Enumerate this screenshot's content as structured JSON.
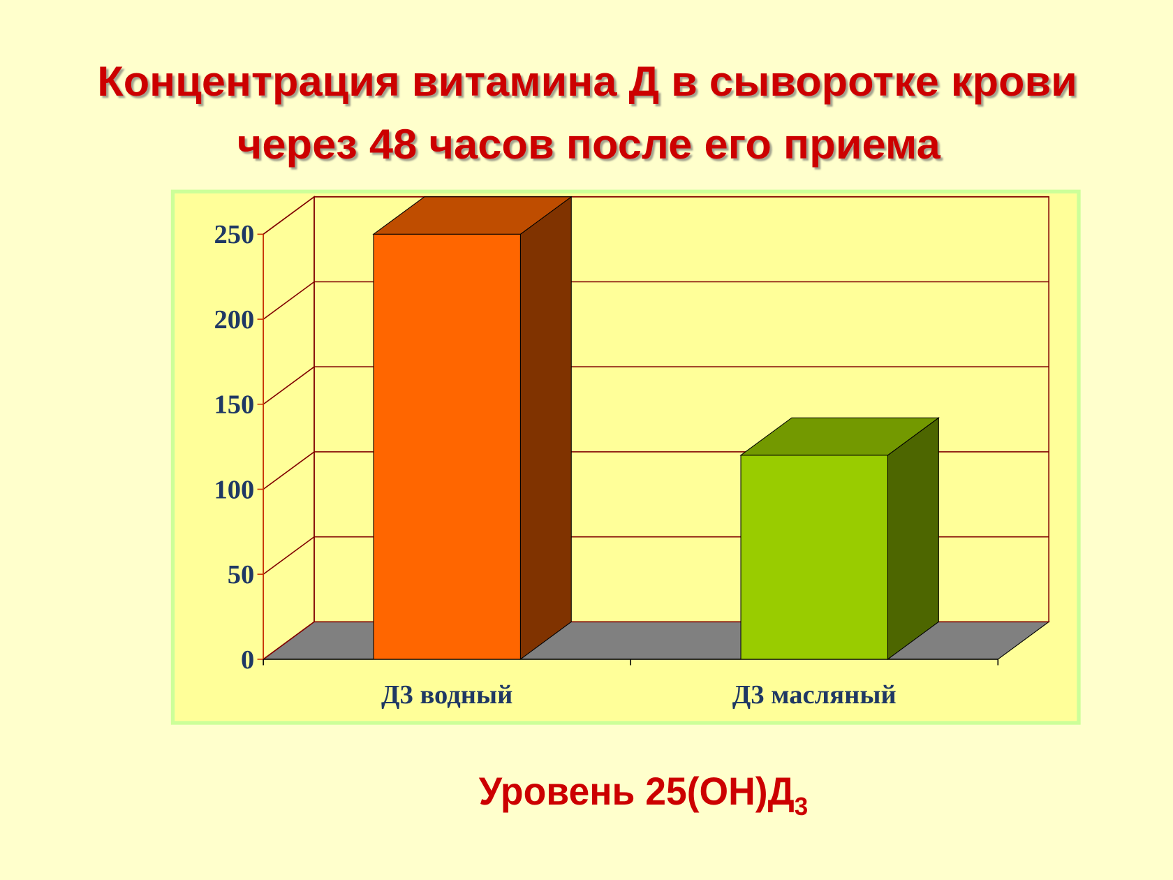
{
  "chart_data": {
    "type": "bar3d",
    "title": [
      "Концентрация витамина Д в сыворотке крови",
      "через 48 часов после его приема"
    ],
    "categories": [
      "Д3 водный",
      "Д3 масляный"
    ],
    "values": [
      250,
      120
    ],
    "colors": [
      "#ff6600",
      "#99cc00"
    ],
    "ylim": [
      0,
      250
    ],
    "yticks": [
      0,
      50,
      100,
      150,
      200,
      250
    ],
    "grid": true,
    "caption": {
      "text": "Уровень 25(ОН)Д",
      "subscript": "3"
    }
  }
}
